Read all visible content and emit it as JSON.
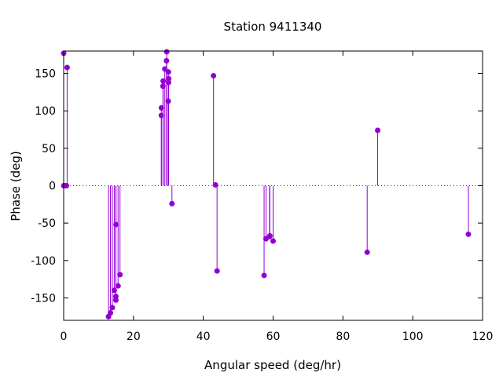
{
  "chart_data": {
    "type": "scatter",
    "style": "impulses",
    "title": "Station 9411340",
    "xlabel": "Angular speed (deg/hr)",
    "ylabel": "Phase (deg)",
    "xlim": [
      0,
      120
    ],
    "ylim": [
      -180,
      180
    ],
    "xticks": [
      "0",
      "20",
      "40",
      "60",
      "80",
      "100",
      "120"
    ],
    "yticks": [
      "-150",
      "-100",
      "-50",
      "0",
      "50",
      "100",
      "150"
    ],
    "grid": false,
    "zero_line": true,
    "color": "#9400d3",
    "series": [
      {
        "points": [
          [
            0.0,
            177
          ],
          [
            0.04,
            0
          ],
          [
            0.08,
            0
          ],
          [
            0.5,
            0
          ],
          [
            0.8,
            0
          ],
          [
            1.0,
            158
          ],
          [
            12.85,
            -175
          ],
          [
            13.4,
            -170
          ],
          [
            13.94,
            -163
          ],
          [
            14.5,
            -140
          ],
          [
            14.95,
            -153
          ],
          [
            14.96,
            -148
          ],
          [
            15.0,
            -52
          ],
          [
            15.59,
            -134
          ],
          [
            16.14,
            -119
          ],
          [
            27.97,
            94
          ],
          [
            28.0,
            104
          ],
          [
            28.44,
            133
          ],
          [
            28.51,
            140
          ],
          [
            28.98,
            156
          ],
          [
            29.46,
            167
          ],
          [
            29.53,
            179
          ],
          [
            29.96,
            113
          ],
          [
            30.0,
            152
          ],
          [
            30.04,
            138
          ],
          [
            30.08,
            143
          ],
          [
            31.02,
            -24
          ],
          [
            42.93,
            147
          ],
          [
            43.48,
            1
          ],
          [
            43.94,
            -114
          ],
          [
            57.42,
            -120
          ],
          [
            57.97,
            -71
          ],
          [
            58.98,
            -68
          ],
          [
            59.07,
            -67
          ],
          [
            60.0,
            -74
          ],
          [
            86.95,
            -89
          ],
          [
            89.95,
            74
          ],
          [
            115.94,
            -65
          ]
        ]
      }
    ]
  }
}
